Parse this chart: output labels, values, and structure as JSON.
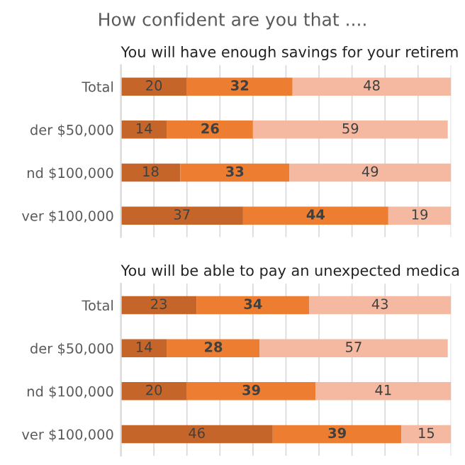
{
  "chart_data": [
    {
      "type": "bar",
      "title": "How confident are you that ....",
      "subtitle": "You will have enough savings for your retirem",
      "orientation": "horizontal",
      "stacked": true,
      "categories": [
        "Total",
        "der $50,000",
        "nd $100,000",
        "ver $100,000"
      ],
      "series": [
        {
          "color": "#c5652a",
          "values": [
            20,
            14,
            18,
            37
          ]
        },
        {
          "color": "#ed7d31",
          "values": [
            32,
            26,
            33,
            44
          ]
        },
        {
          "color": "#f4b9a0",
          "values": [
            48,
            59,
            49,
            19
          ]
        }
      ],
      "data_labels": true,
      "xlim": [
        0,
        100
      ],
      "xticks": [
        {
          "value": 0,
          "label": null
        },
        {
          "value": 10,
          "label": null
        },
        {
          "value": 20,
          "label": null
        },
        {
          "value": 30,
          "label": null
        },
        {
          "value": 40,
          "label": null
        },
        {
          "value": 50,
          "label": null
        },
        {
          "value": 60,
          "label": null
        },
        {
          "value": 70,
          "label": null
        },
        {
          "value": 80,
          "label": null
        },
        {
          "value": 90,
          "label": null
        },
        {
          "value": 100,
          "label": null
        }
      ],
      "grid": "x",
      "tick_labels": "y",
      "legend": false
    },
    {
      "type": "bar",
      "subtitle": "You will be able to pay an unexpected medica",
      "orientation": "horizontal",
      "stacked": true,
      "categories": [
        "Total",
        "der $50,000",
        "nd $100,000",
        "ver $100,000"
      ],
      "series": [
        {
          "color": "#c5652a",
          "values": [
            23,
            14,
            20,
            46
          ]
        },
        {
          "color": "#ed7d31",
          "values": [
            34,
            28,
            39,
            39
          ]
        },
        {
          "color": "#f4b9a0",
          "values": [
            43,
            57,
            41,
            15
          ]
        }
      ],
      "data_labels": true,
      "xlim": [
        0,
        100
      ],
      "xticks": [
        {
          "value": 0,
          "label": null
        },
        {
          "value": 10,
          "label": null
        },
        {
          "value": 20,
          "label": null
        },
        {
          "value": 30,
          "label": null
        },
        {
          "value": 40,
          "label": null
        },
        {
          "value": 50,
          "label": null
        },
        {
          "value": 60,
          "label": null
        },
        {
          "value": 70,
          "label": null
        },
        {
          "value": 80,
          "label": null
        },
        {
          "value": 90,
          "label": null
        },
        {
          "value": 100,
          "label": null
        }
      ],
      "grid": "x",
      "tick_labels": "y",
      "legend": false
    }
  ]
}
